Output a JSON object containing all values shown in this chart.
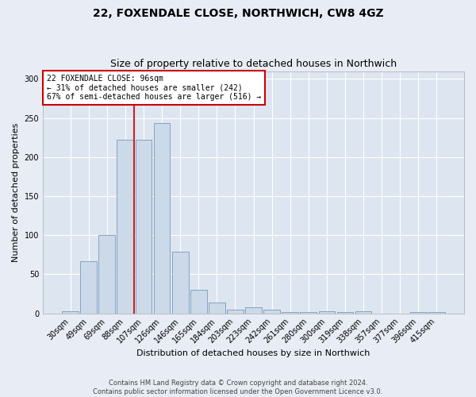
{
  "title": "22, FOXENDALE CLOSE, NORTHWICH, CW8 4GZ",
  "subtitle": "Size of property relative to detached houses in Northwich",
  "xlabel": "Distribution of detached houses by size in Northwich",
  "ylabel": "Number of detached properties",
  "bar_color": "#ccd9e8",
  "bar_edge_color": "#7799bb",
  "background_color": "#dde6f0",
  "fig_background_color": "#e8edf5",
  "grid_color": "#ffffff",
  "categories": [
    "30sqm",
    "49sqm",
    "69sqm",
    "88sqm",
    "107sqm",
    "126sqm",
    "146sqm",
    "165sqm",
    "184sqm",
    "203sqm",
    "223sqm",
    "242sqm",
    "261sqm",
    "280sqm",
    "300sqm",
    "319sqm",
    "338sqm",
    "357sqm",
    "377sqm",
    "396sqm",
    "415sqm"
  ],
  "values": [
    3,
    67,
    100,
    222,
    222,
    243,
    79,
    30,
    14,
    5,
    8,
    5,
    2,
    2,
    3,
    2,
    3,
    0,
    0,
    2,
    2
  ],
  "ylim": [
    0,
    310
  ],
  "yticks": [
    0,
    50,
    100,
    150,
    200,
    250,
    300
  ],
  "red_line_color": "#cc2222",
  "annotation_text": "22 FOXENDALE CLOSE: 96sqm\n← 31% of detached houses are smaller (242)\n67% of semi-detached houses are larger (516) →",
  "annotation_box_color": "#ffffff",
  "annotation_box_edge": "#cc0000",
  "footer_text": "Contains HM Land Registry data © Crown copyright and database right 2024.\nContains public sector information licensed under the Open Government Licence v3.0.",
  "title_fontsize": 10,
  "subtitle_fontsize": 9,
  "ylabel_fontsize": 8,
  "xlabel_fontsize": 8,
  "tick_fontsize": 7,
  "annotation_fontsize": 7,
  "footer_fontsize": 6
}
